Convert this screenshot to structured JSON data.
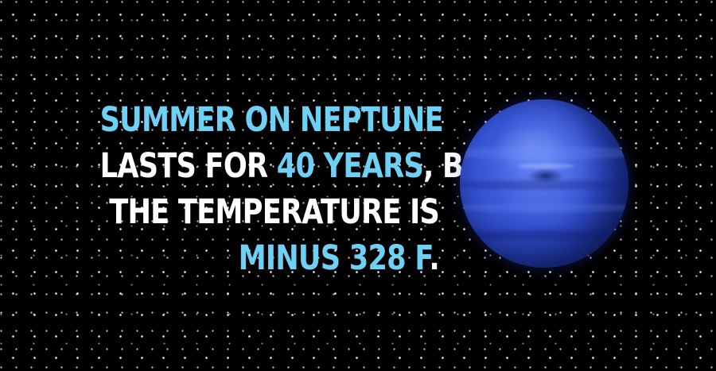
{
  "headline": {
    "line1": "SUMMER ON NEPTUNE",
    "line2_prefix": "LASTS FOR ",
    "line2_highlight": "40 YEARS",
    "line2_suffix": ", BUT",
    "line3": "THE TEMPERATURE IS",
    "line4_highlight": "MINUS 328 F",
    "line4_suffix": "."
  },
  "colors": {
    "background": "#000000",
    "text": "#ffffff",
    "highlight": "#6fd0f5",
    "planet": "#3856d6"
  },
  "image": {
    "subject": "neptune-planet"
  }
}
